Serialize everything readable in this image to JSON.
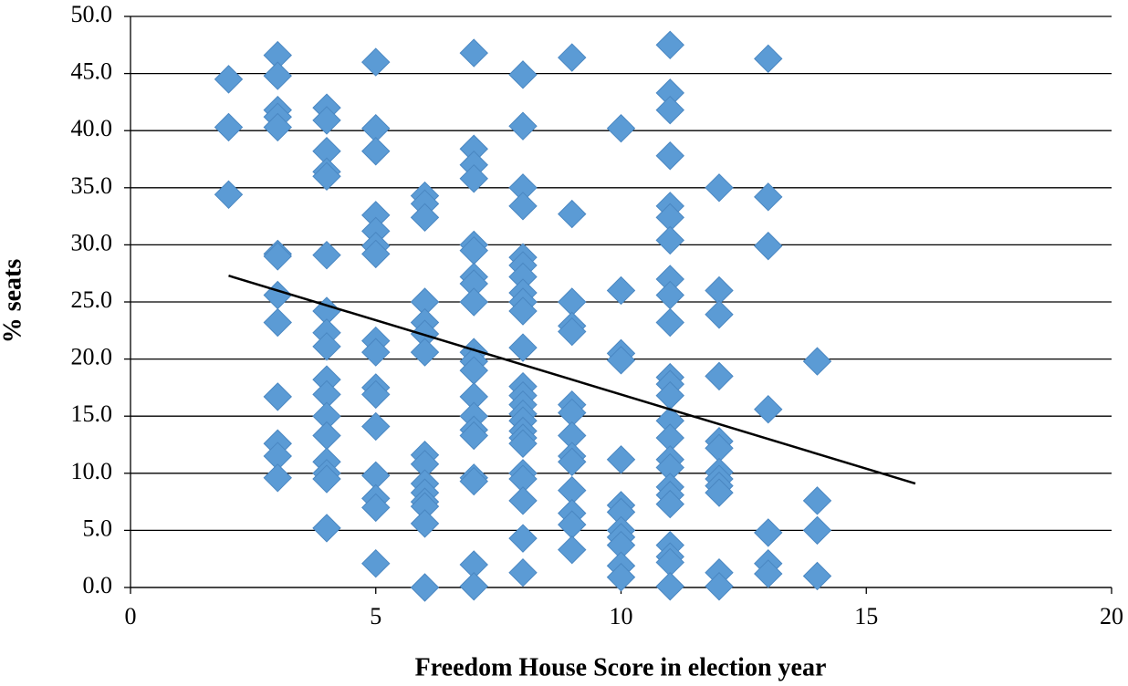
{
  "chart_data": {
    "type": "scatter",
    "x_label": "Freedom House Score in election year",
    "y_label": "% seats",
    "color": "#5b9bd5",
    "x": [
      2,
      2,
      2,
      3,
      3,
      3,
      3,
      3,
      3,
      3,
      3,
      3,
      3,
      3,
      3,
      3,
      4,
      4,
      4,
      4,
      4,
      4,
      4,
      4,
      4,
      4,
      4,
      4,
      4,
      4,
      4,
      4,
      4,
      5,
      5,
      5,
      5,
      5,
      5,
      5,
      5,
      5,
      5,
      5,
      5,
      5,
      5,
      5,
      5,
      6,
      6,
      6,
      6,
      6,
      6,
      6,
      6,
      6,
      6,
      6,
      6,
      6,
      6,
      6,
      7,
      7,
      7,
      7,
      7,
      7,
      7,
      7,
      7,
      7,
      7,
      7,
      7,
      7,
      7,
      7,
      7,
      7,
      7,
      7,
      8,
      8,
      8,
      8,
      8,
      8,
      8,
      8,
      8,
      8,
      8,
      8,
      8,
      8,
      8,
      8,
      8,
      8,
      8,
      8,
      8,
      8,
      8,
      8,
      9,
      9,
      9,
      9,
      9,
      9,
      9,
      9,
      9,
      9,
      9,
      9,
      9,
      9,
      10,
      10,
      10,
      10,
      10,
      10,
      10,
      10,
      10,
      10,
      10,
      10,
      11,
      11,
      11,
      11,
      11,
      11,
      11,
      11,
      11,
      11,
      11,
      11,
      11,
      11,
      11,
      11,
      11,
      11,
      11,
      11,
      11,
      11,
      11,
      11,
      12,
      12,
      12,
      12,
      12,
      12,
      12,
      12,
      12,
      12,
      12,
      12,
      13,
      13,
      13,
      13,
      13,
      13,
      13,
      14,
      14,
      14,
      14
    ],
    "values": [
      44.5,
      40.3,
      34.4,
      46.6,
      44.8,
      41.8,
      41.2,
      40.3,
      29.2,
      29.0,
      25.6,
      23.2,
      16.7,
      12.6,
      11.5,
      9.6,
      42.0,
      40.9,
      38.2,
      36.4,
      36.0,
      29.1,
      24.2,
      22.3,
      21.1,
      18.2,
      16.9,
      15.0,
      13.3,
      11.0,
      10.0,
      9.5,
      5.2,
      46.0,
      40.2,
      38.2,
      32.6,
      31.2,
      29.9,
      29.2,
      21.6,
      20.6,
      17.5,
      16.9,
      14.1,
      9.8,
      7.8,
      7.0,
      2.1,
      34.3,
      33.6,
      32.4,
      25.0,
      23.2,
      22.2,
      20.6,
      11.6,
      10.8,
      9.1,
      8.3,
      7.5,
      7.1,
      5.6,
      0.0,
      46.8,
      38.4,
      37.0,
      35.8,
      30.0,
      29.5,
      27.2,
      26.6,
      25.0,
      20.6,
      19.8,
      19.0,
      16.7,
      15.0,
      13.8,
      13.3,
      9.6,
      9.3,
      2.0,
      0.1,
      44.9,
      40.4,
      35.0,
      33.4,
      28.9,
      28.2,
      27.2,
      25.8,
      25.0,
      24.2,
      21.0,
      17.6,
      16.8,
      16.0,
      15.2,
      14.6,
      13.7,
      13.1,
      12.6,
      10.0,
      9.5,
      7.6,
      4.3,
      1.3,
      46.4,
      32.7,
      25.0,
      22.9,
      22.4,
      16.0,
      15.3,
      13.3,
      11.5,
      11.0,
      8.5,
      6.5,
      5.5,
      3.3,
      40.2,
      26.0,
      20.5,
      19.9,
      11.2,
      7.2,
      6.6,
      5.0,
      4.4,
      3.7,
      1.9,
      0.9,
      47.5,
      43.3,
      41.8,
      37.8,
      33.4,
      32.4,
      30.4,
      27.0,
      25.6,
      23.2,
      18.4,
      17.8,
      16.8,
      14.6,
      13.1,
      11.2,
      10.5,
      8.8,
      8.1,
      7.3,
      3.7,
      2.7,
      2.2,
      0.1,
      35.0,
      26.0,
      23.9,
      18.5,
      12.8,
      12.2,
      10.1,
      9.5,
      8.9,
      8.3,
      1.3,
      0.1,
      46.3,
      34.2,
      29.9,
      15.6,
      4.8,
      2.1,
      1.2,
      19.8,
      7.6,
      5.0,
      1.0
    ],
    "trendline": {
      "x": [
        2,
        16
      ],
      "values": [
        27.3,
        9.1
      ],
      "color": "#000000"
    },
    "xlim": [
      0,
      20
    ],
    "xticks": [
      0,
      5,
      10,
      15,
      20
    ],
    "ylim": [
      0,
      50
    ],
    "yticks": [
      {
        "value": 0,
        "label": "0.0"
      },
      {
        "value": 5,
        "label": "5.0"
      },
      {
        "value": 10,
        "label": "10.0"
      },
      {
        "value": 15,
        "label": "15.0"
      },
      {
        "value": 20,
        "label": "20.0"
      },
      {
        "value": 25,
        "label": "25.0"
      },
      {
        "value": 30,
        "label": "30.0"
      },
      {
        "value": 35,
        "label": "35.0"
      },
      {
        "value": 40,
        "label": "40.0"
      },
      {
        "value": 45,
        "label": "45.0"
      },
      {
        "value": 50,
        "label": "50.0"
      }
    ],
    "grid": true
  }
}
